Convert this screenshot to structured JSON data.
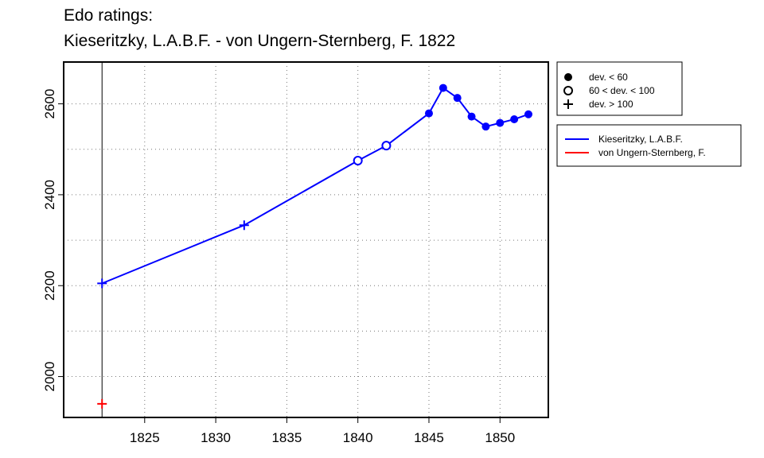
{
  "chart_data": {
    "type": "line",
    "title": "Edo ratings:",
    "subtitle": "Kieseritzky, L.A.B.F. - von Ungern-Sternberg, F. 1822",
    "xlabel": "",
    "ylabel": "",
    "xlim": [
      1819.3,
      1853.4
    ],
    "ylim": [
      1910,
      2692
    ],
    "x_ticks": [
      1825,
      1830,
      1835,
      1840,
      1845,
      1850
    ],
    "y_ticks": [
      2000,
      2200,
      2400,
      2600
    ],
    "grid": true,
    "marker_reference_year": 1822,
    "series": [
      {
        "name": "Kieseritzky, L.A.B.F.",
        "color": "#0000ff",
        "points": [
          {
            "x": 1822,
            "y": 2205,
            "marker": "plus"
          },
          {
            "x": 1832,
            "y": 2333,
            "marker": "plus"
          },
          {
            "x": 1840,
            "y": 2475,
            "marker": "open"
          },
          {
            "x": 1842,
            "y": 2508,
            "marker": "open"
          },
          {
            "x": 1845,
            "y": 2579,
            "marker": "filled"
          },
          {
            "x": 1846,
            "y": 2635,
            "marker": "filled"
          },
          {
            "x": 1847,
            "y": 2613,
            "marker": "filled"
          },
          {
            "x": 1848,
            "y": 2572,
            "marker": "filled"
          },
          {
            "x": 1849,
            "y": 2550,
            "marker": "filled"
          },
          {
            "x": 1850,
            "y": 2558,
            "marker": "filled"
          },
          {
            "x": 1851,
            "y": 2566,
            "marker": "filled"
          },
          {
            "x": 1852,
            "y": 2577,
            "marker": "filled"
          }
        ]
      },
      {
        "name": "von Ungern-Sternberg, F.",
        "color": "#ff0000",
        "points": [
          {
            "x": 1822,
            "y": 1940,
            "marker": "plus"
          }
        ]
      }
    ],
    "marker_legend": [
      {
        "symbol": "filled",
        "label": "dev. < 60"
      },
      {
        "symbol": "open",
        "label": "60 < dev. < 100"
      },
      {
        "symbol": "plus",
        "label": "dev. > 100"
      }
    ],
    "legend_position": "right"
  }
}
